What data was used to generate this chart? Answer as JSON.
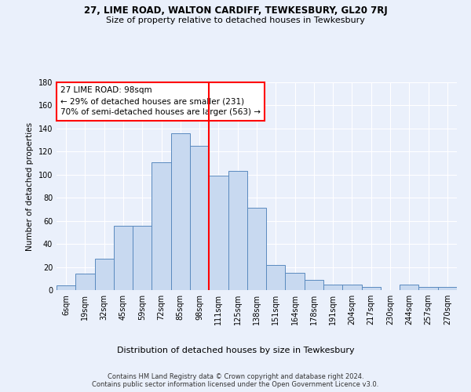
{
  "title1": "27, LIME ROAD, WALTON CARDIFF, TEWKESBURY, GL20 7RJ",
  "title2": "Size of property relative to detached houses in Tewkesbury",
  "xlabel": "Distribution of detached houses by size in Tewkesbury",
  "ylabel": "Number of detached properties",
  "bar_labels": [
    "6sqm",
    "19sqm",
    "32sqm",
    "45sqm",
    "59sqm",
    "72sqm",
    "85sqm",
    "98sqm",
    "111sqm",
    "125sqm",
    "138sqm",
    "151sqm",
    "164sqm",
    "178sqm",
    "191sqm",
    "204sqm",
    "217sqm",
    "230sqm",
    "244sqm",
    "257sqm",
    "270sqm"
  ],
  "bar_values": [
    4,
    14,
    27,
    56,
    56,
    111,
    136,
    125,
    99,
    103,
    71,
    22,
    15,
    9,
    5,
    5,
    3,
    0,
    5,
    3,
    3
  ],
  "bar_color": "#c8d9f0",
  "bar_edge_color": "#5a8abf",
  "vline_color": "red",
  "annotation_text": "27 LIME ROAD: 98sqm\n← 29% of detached houses are smaller (231)\n70% of semi-detached houses are larger (563) →",
  "annotation_box_color": "white",
  "annotation_box_edge": "red",
  "ylim": [
    0,
    180
  ],
  "yticks": [
    0,
    20,
    40,
    60,
    80,
    100,
    120,
    140,
    160,
    180
  ],
  "footer": "Contains HM Land Registry data © Crown copyright and database right 2024.\nContains public sector information licensed under the Open Government Licence v3.0.",
  "bg_color": "#eaf0fb",
  "plot_bg_color": "#eaf0fb"
}
